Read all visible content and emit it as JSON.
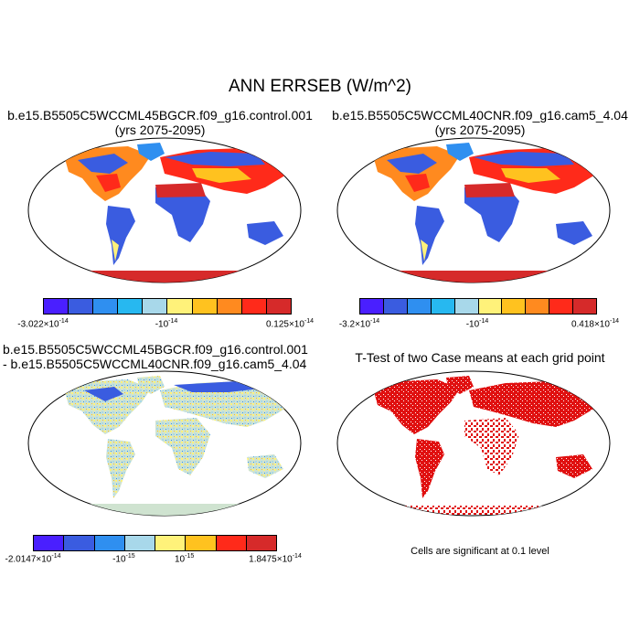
{
  "figure": {
    "title": "ANN ERRSEB (W/m^2)"
  },
  "panels": [
    {
      "title_line1": "b.e15.B5505C5WCCML45BGCR.f09_g16.control.001",
      "title_line2": "(yrs 2075-2095)",
      "colorbar": {
        "colors": [
          "#4a1fff",
          "#3a5ce0",
          "#2f8ff0",
          "#27b8f0",
          "#a8d8ea",
          "#fff27a",
          "#ffc21f",
          "#ff8a1f",
          "#ff2a1a",
          "#d62a2a"
        ],
        "labels": [
          "-3.022×10",
          "-10",
          "0.125×10"
        ],
        "exponents": [
          "-14",
          "-14",
          "-14"
        ]
      }
    },
    {
      "title_line1": "b.e15.B5505C5WCCML40CNR.f09_g16.cam5_4.04",
      "title_line2": "(yrs 2075-2095)",
      "colorbar": {
        "colors": [
          "#4a1fff",
          "#3a5ce0",
          "#2f8ff0",
          "#27b8f0",
          "#a8d8ea",
          "#fff27a",
          "#ffc21f",
          "#ff8a1f",
          "#ff2a1a",
          "#d62a2a"
        ],
        "labels": [
          "-3.2×10",
          "-10",
          "0.418×10"
        ],
        "exponents": [
          "-14",
          "-14",
          "-14"
        ]
      }
    },
    {
      "title_line1": "b.e15.B5505C5WCCML45BGCR.f09_g16.control.001",
      "title_line2": "- b.e15.B5505C5WCCML40CNR.f09_g16.cam5_4.04",
      "colorbar": {
        "colors": [
          "#4a1fff",
          "#3a5ce0",
          "#2f8ff0",
          "#a8d8ea",
          "#fff27a",
          "#ffc21f",
          "#ff2a1a",
          "#d62a2a"
        ],
        "labels": [
          "-2.0147×10",
          "-10",
          "10",
          "1.8475×10"
        ],
        "exponents": [
          "-14",
          "-15",
          "-15",
          "-14"
        ]
      }
    },
    {
      "title_line1": "T-Test of two Case means at each grid point",
      "note": "Cells are significant at 0.1 level"
    }
  ]
}
